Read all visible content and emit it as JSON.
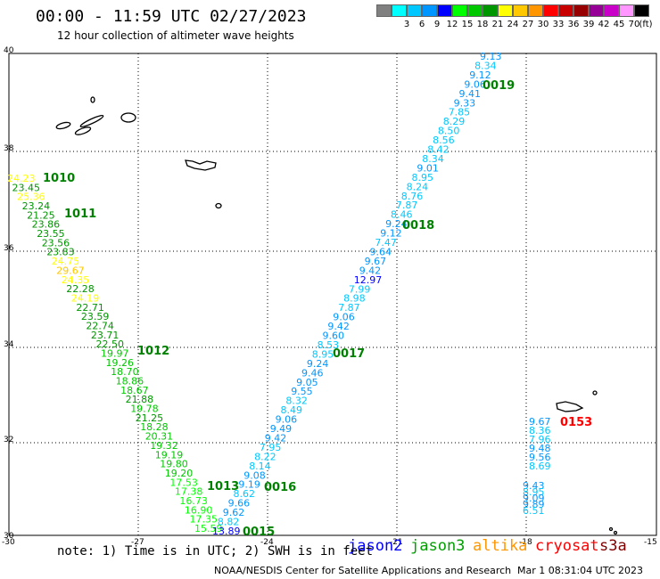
{
  "header": {
    "title": "00:00 - 11:59 UTC 02/27/2023",
    "subtitle": "12 hour collection of altimeter wave heights"
  },
  "legend": {
    "unit": "(ft)",
    "bins": [
      {
        "label": "",
        "color": "#808080"
      },
      {
        "label": "3",
        "color": "#00ffff"
      },
      {
        "label": "6",
        "color": "#00c8ff"
      },
      {
        "label": "9",
        "color": "#0096ff"
      },
      {
        "label": "12",
        "color": "#0000ff"
      },
      {
        "label": "15",
        "color": "#00ff00"
      },
      {
        "label": "18",
        "color": "#00c800"
      },
      {
        "label": "21",
        "color": "#009600"
      },
      {
        "label": "24",
        "color": "#ffff00"
      },
      {
        "label": "27",
        "color": "#ffc800"
      },
      {
        "label": "30",
        "color": "#ff9600"
      },
      {
        "label": "33",
        "color": "#ff0000"
      },
      {
        "label": "36",
        "color": "#c80000"
      },
      {
        "label": "39",
        "color": "#960000"
      },
      {
        "label": "42",
        "color": "#960096"
      },
      {
        "label": "45",
        "color": "#c800c8"
      },
      {
        "label": "70",
        "color": "#ff96ff"
      },
      {
        "label": "",
        "color": "#000000"
      }
    ]
  },
  "axes": {
    "lon_ticks": [
      "-30",
      "-27",
      "-24",
      "-21",
      "-18",
      "-15"
    ],
    "lat_ticks": [
      "40",
      "38",
      "36",
      "34",
      "32",
      "30"
    ]
  },
  "tracks": [
    {
      "id": "1010",
      "color": "#008000"
    },
    {
      "id": "1011",
      "color": "#008000"
    },
    {
      "id": "1012",
      "color": "#008000"
    },
    {
      "id": "1013",
      "color": "#008000"
    },
    {
      "id": "0015",
      "color": "#008000"
    },
    {
      "id": "0016",
      "color": "#008000"
    },
    {
      "id": "0017",
      "color": "#008000"
    },
    {
      "id": "0018",
      "color": "#008000"
    },
    {
      "id": "0019",
      "color": "#008000"
    },
    {
      "id": "0153",
      "color": "#ff0000"
    }
  ],
  "obs_left": [
    "24.23",
    "23.45",
    "25.36",
    "23.24",
    "21.25",
    "23.86",
    "23.55",
    "23.56",
    "23.83",
    "24.75",
    "29.67",
    "24.35",
    "22.28",
    "24.19",
    "22.71",
    "23.59",
    "22.74",
    "23.71",
    "22.50",
    "19.97",
    "19.26",
    "18.70",
    "18.86",
    "18.67",
    "21.88",
    "19.78",
    "21.25",
    "18.28",
    "20.31",
    "19.32",
    "19.19",
    "19.80",
    "19.20",
    "17.53",
    "17.38",
    "16.73",
    "16.90",
    "17.35",
    "15.59"
  ],
  "obs_mid": [
    "13.89",
    "8.82",
    "9.62",
    "9.66",
    "8.62",
    "9.19",
    "9.08",
    "8.14",
    "8.22",
    "7.95",
    "9.42",
    "9.49",
    "9.06",
    "8.49",
    "8.32",
    "9.55",
    "9.05",
    "9.46",
    "9.24",
    "8.95",
    "8.53",
    "9.60",
    "9.42",
    "9.06",
    "7.87",
    "8.98",
    "7.99",
    "12.97",
    "9.42",
    "9.67",
    "9.64",
    "7.47",
    "9.12",
    "9.24",
    "8.46",
    "7.87",
    "8.76",
    "8.24",
    "8.95",
    "9.01",
    "8.34",
    "8.42",
    "8.56",
    "8.50",
    "8.29",
    "7.85",
    "9.33",
    "9.41",
    "9.06",
    "9.12",
    "8.34",
    "9.13"
  ],
  "obs_right": [
    "9.67",
    "8.36",
    "7.96",
    "9.48",
    "9.56",
    "8.69",
    "9.43",
    "8.95",
    "9.09",
    "9.89",
    "6.51"
  ],
  "footer": {
    "note": "note: 1) Time is in UTC; 2) SWH is in feet",
    "satellites": [
      {
        "name": "jason2",
        "color": "#0000ff"
      },
      {
        "name": "jason3",
        "color": "#00a000"
      },
      {
        "name": "altika",
        "color": "#ff9600"
      },
      {
        "name": "cryosat",
        "color": "#ff0000"
      },
      {
        "name": "s3a",
        "color": "#800000"
      }
    ],
    "credit": "NOAA/NESDIS Center for Satellite Applications and Research",
    "timestamp": "Mar  1 08:31:04 UTC 2023"
  }
}
